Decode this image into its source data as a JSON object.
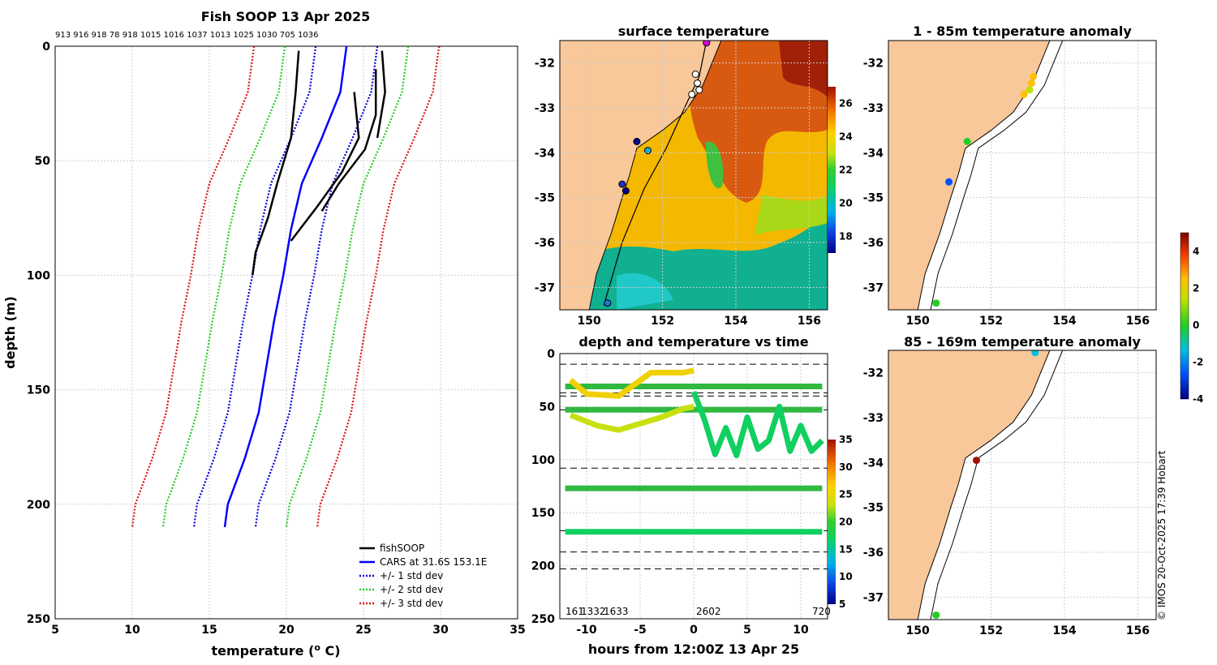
{
  "colors": {
    "land": "#f8c89a",
    "fish": "#000000",
    "cars": "#0000ff",
    "std1": "#0000dd",
    "std2": "#22cc22",
    "std3": "#dd1111",
    "dash": "#000000"
  },
  "credit": "© IMOS 20-Oct-2025 17:39 Hobart",
  "chart_data": [
    {
      "id": "profile",
      "type": "line",
      "title": "Fish SOOP 13 Apr 2025",
      "top_numbers": "913 916 918 78 918 1015 1016 1037 1013 1025 1030 705 1036",
      "xlabel": "temperature (",
      "xlabel_sup": "o",
      "xlabel_tail": " C)",
      "ylabel": "depth (m)",
      "xlim": [
        5,
        35
      ],
      "ylim": [
        250,
        0
      ],
      "xticks": [
        "5",
        "10",
        "15",
        "20",
        "25",
        "30",
        "35"
      ],
      "yticks": [
        "0",
        "50",
        "100",
        "150",
        "200",
        "250"
      ],
      "legend": [
        "fishSOOP",
        "CARS at 31.6S 153.1E",
        "+/- 1 std dev",
        "+/- 2 std dev",
        "+/- 3 std dev"
      ],
      "legend_position": "bottom-right",
      "cars": {
        "depth": [
          0,
          20,
          40,
          60,
          80,
          100,
          120,
          140,
          160,
          180,
          200,
          210
        ],
        "temp": [
          23.9,
          23.5,
          22.3,
          21.0,
          20.3,
          19.8,
          19.2,
          18.7,
          18.2,
          17.3,
          16.2,
          16.0
        ]
      },
      "std_offsets": [
        2,
        4,
        6
      ],
      "fish_series": [
        {
          "depth": [
            2,
            20,
            40,
            60,
            75,
            90,
            100
          ],
          "temp": [
            20.8,
            20.6,
            20.3,
            19.4,
            18.8,
            18.0,
            17.8
          ]
        },
        {
          "depth": [
            10,
            30,
            45,
            60,
            72
          ],
          "temp": [
            25.8,
            25.8,
            25.1,
            23.4,
            22.3
          ]
        },
        {
          "depth": [
            2,
            20,
            40
          ],
          "temp": [
            26.2,
            26.4,
            25.9
          ]
        },
        {
          "depth": [
            20,
            40,
            55,
            70,
            85
          ],
          "temp": [
            24.4,
            24.7,
            23.6,
            22.0,
            20.3
          ]
        }
      ]
    },
    {
      "id": "sst",
      "type": "heatmap",
      "title": "surface temperature",
      "xlim": [
        149.2,
        156.5
      ],
      "ylim": [
        -37.5,
        -31.5
      ],
      "xticks": [
        "150",
        "152",
        "154",
        "156"
      ],
      "yticks": [
        "-32",
        "-33",
        "-34",
        "-35",
        "-36",
        "-37"
      ],
      "colorbar": {
        "min": 17,
        "max": 27,
        "ticks": [
          "18",
          "20",
          "22",
          "24",
          "26"
        ]
      },
      "track": {
        "lon": [
          153.2,
          153.0,
          152.6,
          152.1,
          151.5,
          150.9,
          150.4
        ],
        "lat": [
          -31.5,
          -32.3,
          -33.0,
          -33.9,
          -34.8,
          -36.0,
          -37.4
        ]
      },
      "coast": {
        "lon": [
          153.6,
          153.1,
          152.6,
          152.0,
          151.3,
          151.1,
          150.9,
          150.6,
          150.2,
          150.0
        ],
        "lat": [
          -31.5,
          -32.5,
          -33.1,
          -33.5,
          -33.9,
          -34.5,
          -35.0,
          -35.8,
          -36.7,
          -37.5
        ]
      },
      "points": [
        {
          "lon": 153.2,
          "lat": -31.55,
          "c": "#dd00dd"
        },
        {
          "lon": 152.9,
          "lat": -32.25,
          "c": "#ffffff"
        },
        {
          "lon": 152.95,
          "lat": -32.45,
          "c": "#ffffff"
        },
        {
          "lon": 153.0,
          "lat": -32.6,
          "c": "#ffffff"
        },
        {
          "lon": 152.8,
          "lat": -32.7,
          "c": "#ffffff"
        },
        {
          "lon": 151.3,
          "lat": -33.75,
          "c": "#000088"
        },
        {
          "lon": 151.6,
          "lat": -33.95,
          "c": "#11aadd"
        },
        {
          "lon": 150.9,
          "lat": -34.7,
          "c": "#2233bb"
        },
        {
          "lon": 151.0,
          "lat": -34.85,
          "c": "#000088"
        },
        {
          "lon": 150.5,
          "lat": -37.35,
          "c": "#2277dd"
        }
      ]
    },
    {
      "id": "timeseries",
      "type": "line",
      "title": "depth and temperature vs time",
      "xlabel": "hours from 12:00Z 13 Apr 25",
      "xlim": [
        -12.5,
        12.5
      ],
      "ylim": [
        250,
        0
      ],
      "xticks": [
        "-10",
        "-5",
        "0",
        "5",
        "10"
      ],
      "yticks": [
        "0",
        "50",
        "100",
        "150",
        "200",
        "250"
      ],
      "bottom_labels": [
        "161",
        "1332",
        "1633",
        "2602",
        "720"
      ],
      "dashed_depths": [
        10,
        37,
        40,
        53,
        108,
        167,
        187,
        203
      ],
      "colorbar": {
        "min": 5,
        "max": 35,
        "ticks": [
          "5",
          "10",
          "15",
          "20",
          "25",
          "30",
          "35"
        ]
      },
      "tracks": [
        {
          "t": [
            -12,
            12
          ],
          "d": [
            31,
            31
          ],
          "temp": 21
        },
        {
          "t": [
            -12,
            12
          ],
          "d": [
            53,
            53
          ],
          "temp": 21
        },
        {
          "t": [
            -12,
            12
          ],
          "d": [
            127,
            127
          ],
          "temp": 22
        },
        {
          "t": [
            -12,
            12
          ],
          "d": [
            168,
            168
          ],
          "temp": 20
        },
        {
          "t": [
            -11.5,
            -10,
            -7,
            -4,
            -1,
            0
          ],
          "d": [
            25,
            38,
            40,
            18,
            18,
            16
          ],
          "temp": 25
        },
        {
          "t": [
            -11.5,
            -9,
            -7,
            -3,
            -1,
            0
          ],
          "d": [
            58,
            68,
            72,
            60,
            52,
            50
          ],
          "temp": 23
        },
        {
          "t": [
            0,
            1,
            2,
            3,
            4,
            5,
            6,
            7,
            8,
            9,
            10,
            11,
            12
          ],
          "d": [
            36,
            62,
            95,
            70,
            96,
            60,
            90,
            82,
            50,
            92,
            68,
            92,
            82
          ],
          "temp": 20
        }
      ]
    },
    {
      "id": "anom1",
      "type": "scatter",
      "title": "1 - 85m temperature anomaly",
      "xlim": [
        149.2,
        156.5
      ],
      "ylim": [
        -37.5,
        -31.5
      ],
      "xticks": [
        "150",
        "152",
        "154",
        "156"
      ],
      "yticks": [
        "-32",
        "-33",
        "-34",
        "-35",
        "-36",
        "-37"
      ],
      "points": [
        {
          "lon": 153.15,
          "lat": -32.3,
          "v": 2.5
        },
        {
          "lon": 153.1,
          "lat": -32.45,
          "v": 2.2
        },
        {
          "lon": 153.05,
          "lat": -32.6,
          "v": 1.5
        },
        {
          "lon": 152.9,
          "lat": -32.7,
          "v": 2.4
        },
        {
          "lon": 151.35,
          "lat": -33.75,
          "v": 0.0
        },
        {
          "lon": 150.85,
          "lat": -34.65,
          "v": -1.6
        },
        {
          "lon": 150.5,
          "lat": -37.35,
          "v": 0.2
        }
      ]
    },
    {
      "id": "anom2",
      "type": "scatter",
      "title": "85 - 169m temperature anomaly",
      "xlim": [
        149.2,
        156.5
      ],
      "ylim": [
        -37.5,
        -31.5
      ],
      "xticks": [
        "150",
        "152",
        "154",
        "156"
      ],
      "yticks": [
        "-32",
        "-33",
        "-34",
        "-35",
        "-36",
        "-37"
      ],
      "points": [
        {
          "lon": 153.2,
          "lat": -31.55,
          "v": -1.3
        },
        {
          "lon": 151.6,
          "lat": -33.95,
          "v": 4.6
        },
        {
          "lon": 150.5,
          "lat": -37.4,
          "v": 0.3
        }
      ],
      "colorbar": {
        "min": -4,
        "max": 5,
        "ticks": [
          "4",
          "2",
          "0",
          "-2",
          "-4"
        ]
      }
    }
  ]
}
